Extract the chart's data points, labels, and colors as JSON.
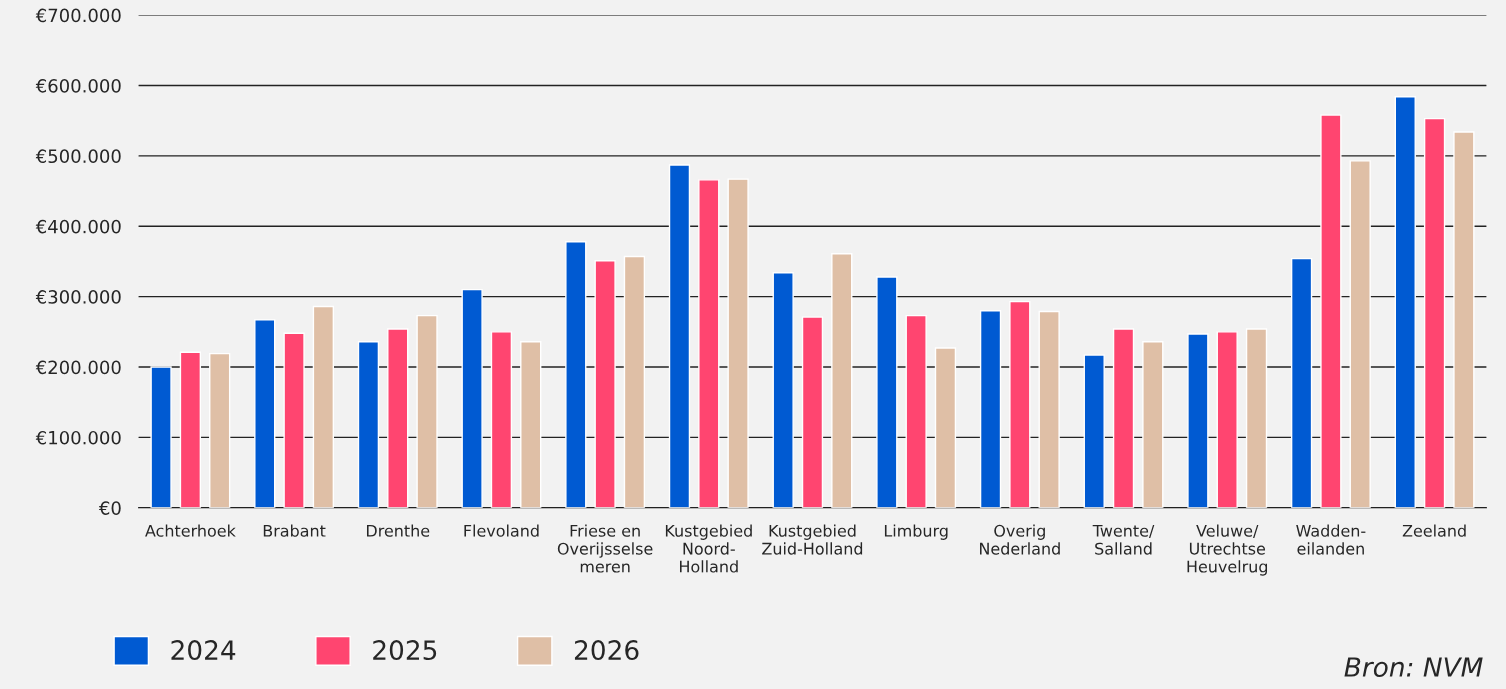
{
  "chart_data": {
    "type": "bar",
    "categories": [
      "Achterhoek",
      "Brabant",
      "Drenthe",
      "Flevoland",
      "Friese en\nOverijsselse\nmeren",
      "Kustgebied\nNoord-\nHolland",
      "Kustgebied\nZuid-Holland",
      "Limburg",
      "Overig\nNederland",
      "Twente/\nSalland",
      "Veluwe/\nUtrechtse\nHeuvelrug",
      "Wadden-\neilanden",
      "Zeeland"
    ],
    "series": [
      {
        "name": "2024",
        "color": "#005ad2",
        "values": [
          200000,
          267000,
          236000,
          310000,
          378000,
          487000,
          334000,
          328000,
          280000,
          217000,
          247000,
          354000,
          584000
        ]
      },
      {
        "name": "2025",
        "color": "#ff4570",
        "values": [
          221000,
          248000,
          254000,
          250000,
          351000,
          466000,
          271000,
          273000,
          293000,
          254000,
          250000,
          558000,
          553000
        ]
      },
      {
        "name": "2026",
        "color": "#dfbfa6",
        "values": [
          219000,
          286000,
          273000,
          236000,
          357000,
          467000,
          361000,
          227000,
          279000,
          236000,
          254000,
          493000,
          534000
        ]
      }
    ],
    "ylim": [
      0,
      700000
    ],
    "yticks": [
      {
        "value": 0,
        "label": "€0"
      },
      {
        "value": 100000,
        "label": "€100.000"
      },
      {
        "value": 200000,
        "label": "€200.000"
      },
      {
        "value": 300000,
        "label": "€300.000"
      },
      {
        "value": 400000,
        "label": "€400.000"
      },
      {
        "value": 500000,
        "label": "€500.000"
      },
      {
        "value": 600000,
        "label": "€600.000"
      },
      {
        "value": 700000,
        "label": "€700.000"
      }
    ],
    "grid": "y",
    "legend": "bottom left",
    "annotations": [
      "Bron: NVM"
    ]
  }
}
